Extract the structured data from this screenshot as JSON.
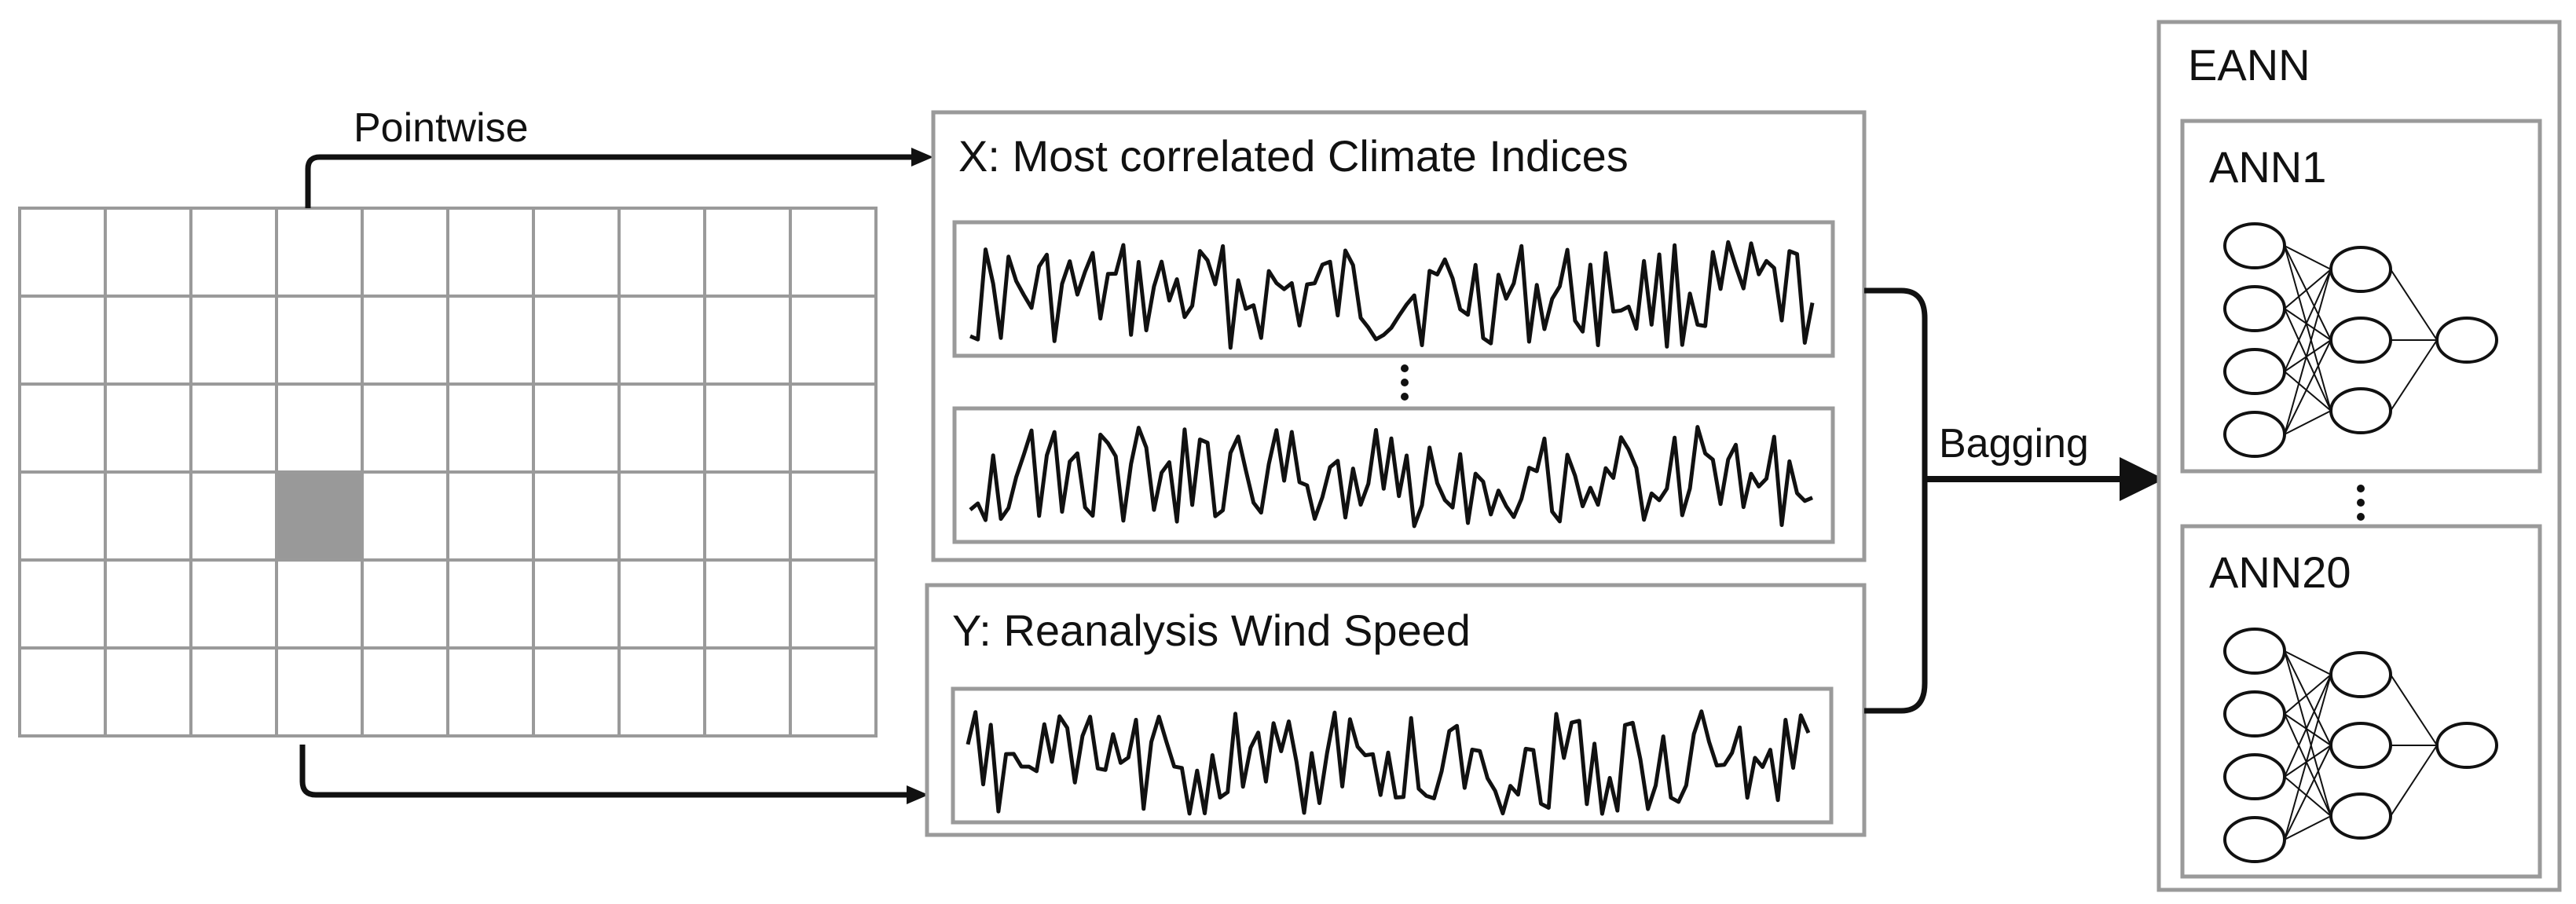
{
  "labels": {
    "pointwise": "Pointwise",
    "predictors": "X: Most correlated Climate Indices",
    "target": "Y: Reanalysis Wind Speed",
    "bagging": "Bagging",
    "ensemble": "EANN",
    "model_first": "ANN1",
    "model_last": "ANN20"
  },
  "grid": {
    "rows": 6,
    "cols": 10,
    "selected_row": 3,
    "selected_col": 3
  },
  "colors": {
    "box_border": "#9a9a9a",
    "selected_cell": "#999999",
    "line": "#111111"
  },
  "icons": {
    "continuation": "vertical-ellipsis-icon"
  }
}
